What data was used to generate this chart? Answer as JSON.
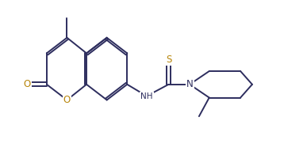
{
  "bg_color": "#ffffff",
  "line_color": "#2d2d5e",
  "atom_colors": {
    "O": "#b8860b",
    "N": "#2d2d5e",
    "S": "#b8860b",
    "C": "#2d2d5e"
  },
  "line_width": 1.4,
  "font_size": 7.5,
  "figsize": [
    3.58,
    1.86
  ],
  "dpi": 100
}
